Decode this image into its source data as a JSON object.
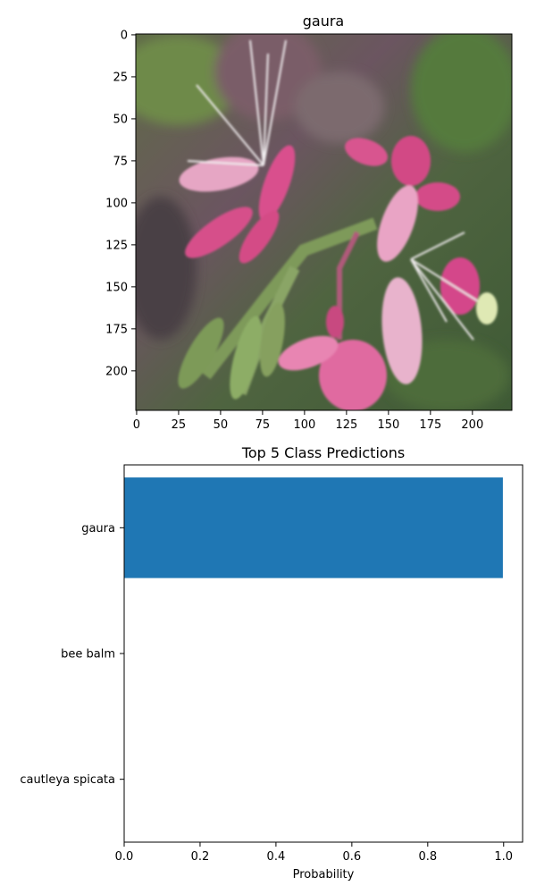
{
  "chart_data": [
    {
      "type": "image",
      "title": "gaura",
      "xticks": [
        0,
        25,
        50,
        75,
        100,
        125,
        150,
        175,
        200
      ],
      "yticks": [
        0,
        25,
        50,
        75,
        100,
        125,
        150,
        175,
        200
      ],
      "xlim": [
        -0.5,
        223.5
      ],
      "ylim": [
        223.5,
        -0.5
      ],
      "image_description": "pink gaura flowers on green background"
    },
    {
      "type": "bar",
      "orientation": "horizontal",
      "title": "Top 5 Class Predictions",
      "xlabel": "Probability",
      "ylabel": "",
      "categories": [
        "gaura",
        "bee balm",
        "cautleya spicata"
      ],
      "values": [
        0.998,
        0.001,
        0.001
      ],
      "xlim": [
        0,
        1.05
      ],
      "xticks": [
        "0.0",
        "0.2",
        "0.4",
        "0.6",
        "0.8",
        "1.0"
      ],
      "bar_color": "#1f77b4"
    }
  ]
}
